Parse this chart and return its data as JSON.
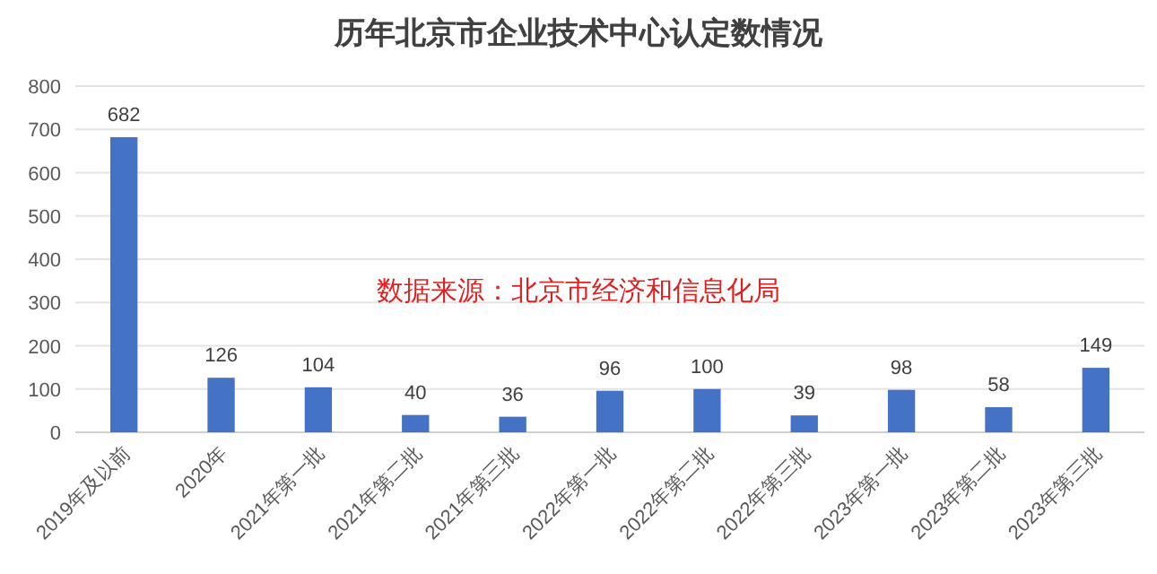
{
  "chart_data": {
    "type": "bar",
    "title": "历年北京市企业技术中心认定数情况",
    "categories": [
      "2019年及以前",
      "2020年",
      "2021年第一批",
      "2021年第二批",
      "2021年第三批",
      "2022年第一批",
      "2022年第二批",
      "2022年第三批",
      "2023年第一批",
      "2023年第二批",
      "2023年第三批"
    ],
    "values": [
      682,
      126,
      104,
      40,
      36,
      96,
      100,
      39,
      98,
      58,
      149
    ],
    "color": "#4472c4",
    "ylim": [
      0,
      800
    ],
    "yticks": [
      0,
      100,
      200,
      300,
      400,
      500,
      600,
      700,
      800
    ],
    "grid": "y",
    "data_labels": true,
    "annotations": [
      "数据来源：北京市经济和信息化局"
    ]
  }
}
